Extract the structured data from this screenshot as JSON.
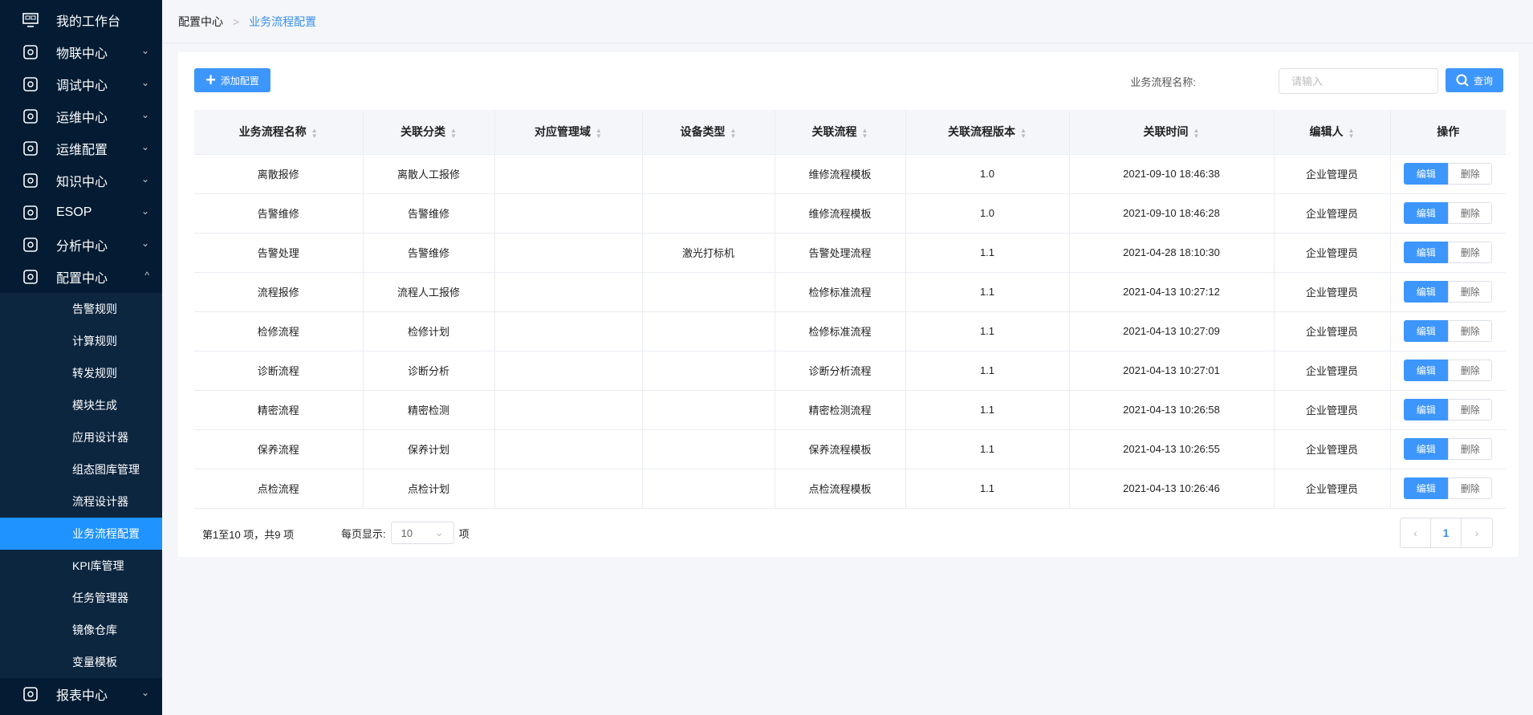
{
  "sidebar": {
    "items": [
      {
        "label": "我的工作台",
        "icon": "monitor-icon"
      },
      {
        "label": "物联中心",
        "icon": "robot-arm-icon"
      },
      {
        "label": "调试中心",
        "icon": "debug-search-icon"
      },
      {
        "label": "运维中心",
        "icon": "house-wrench-icon"
      },
      {
        "label": "运维配置",
        "icon": "gear-wrench-icon"
      },
      {
        "label": "知识中心",
        "icon": "database-icon"
      },
      {
        "label": "ESOP",
        "icon": "esop-icon"
      },
      {
        "label": "分析中心",
        "icon": "chart-icon"
      },
      {
        "label": "配置中心",
        "icon": "toolbox-icon"
      }
    ],
    "subitems": [
      "告警规则",
      "计算规则",
      "转发规则",
      "模块生成",
      "应用设计器",
      "组态图库管理",
      "流程设计器",
      "业务流程配置",
      "KPI库管理",
      "任务管理器",
      "镜像仓库",
      "变量模板"
    ],
    "active": "业务流程配置",
    "last": {
      "label": "报表中心",
      "icon": "report-icon"
    }
  },
  "breadcrumb": {
    "parent": "配置中心",
    "current": "业务流程配置"
  },
  "toolbar": {
    "add_label": "添加配置",
    "search_label": "业务流程名称:",
    "search_placeholder": "请输入",
    "search_value": "",
    "query_label": "查询"
  },
  "table": {
    "columns": [
      "业务流程名称",
      "关联分类",
      "对应管理域",
      "设备类型",
      "关联流程",
      "关联流程版本",
      "关联时间",
      "编辑人",
      "操作"
    ],
    "rows": [
      [
        "离散报修",
        "离散人工报修",
        "",
        "",
        "维修流程模板",
        "1.0",
        "2021-09-10 18:46:38",
        "企业管理员"
      ],
      [
        "告警维修",
        "告警维修",
        "",
        "",
        "维修流程模板",
        "1.0",
        "2021-09-10 18:46:28",
        "企业管理员"
      ],
      [
        "告警处理",
        "告警维修",
        "",
        "激光打标机",
        "告警处理流程",
        "1.1",
        "2021-04-28 18:10:30",
        "企业管理员"
      ],
      [
        "流程报修",
        "流程人工报修",
        "",
        "",
        "检修标准流程",
        "1.1",
        "2021-04-13 10:27:12",
        "企业管理员"
      ],
      [
        "检修流程",
        "检修计划",
        "",
        "",
        "检修标准流程",
        "1.1",
        "2021-04-13 10:27:09",
        "企业管理员"
      ],
      [
        "诊断流程",
        "诊断分析",
        "",
        "",
        "诊断分析流程",
        "1.1",
        "2021-04-13 10:27:01",
        "企业管理员"
      ],
      [
        "精密流程",
        "精密检测",
        "",
        "",
        "精密检测流程",
        "1.1",
        "2021-04-13 10:26:58",
        "企业管理员"
      ],
      [
        "保养流程",
        "保养计划",
        "",
        "",
        "保养流程模板",
        "1.1",
        "2021-04-13 10:26:55",
        "企业管理员"
      ],
      [
        "点检流程",
        "点检计划",
        "",
        "",
        "点检流程模板",
        "1.1",
        "2021-04-13 10:26:46",
        "企业管理员"
      ]
    ],
    "edit_label": "编辑",
    "delete_label": "删除"
  },
  "pagination": {
    "info": "第1至10 项，共9  项",
    "per_page_label": "每页显示:",
    "per_page": "10",
    "unit": "项",
    "current_page": "1"
  },
  "colors": {
    "primary": "#3d96fb",
    "sidebar_bg": "#031c33",
    "active": "#1f93ff"
  }
}
